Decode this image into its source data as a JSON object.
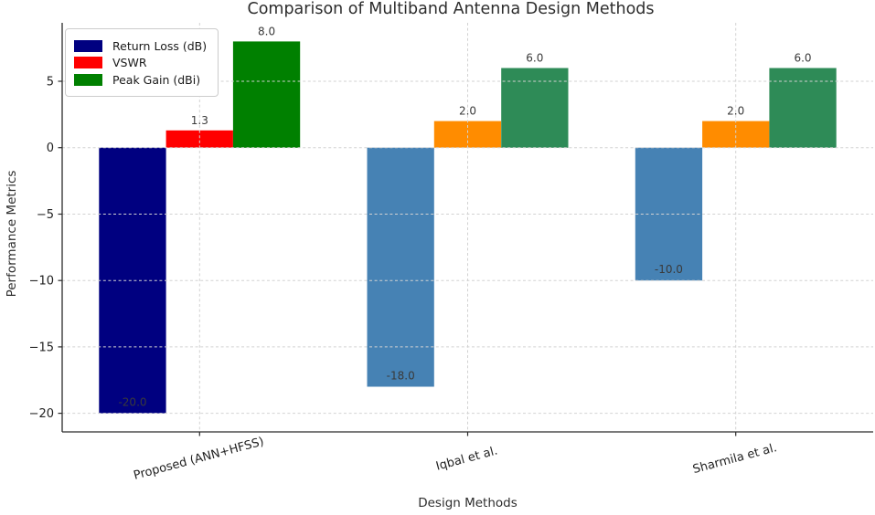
{
  "chart_data": {
    "type": "bar",
    "title": "Comparison of Multiband Antenna Design Methods",
    "xlabel": "Design Methods",
    "ylabel": "Performance Metrics",
    "categories": [
      "Proposed (ANN+HFSS)",
      "Iqbal et al.",
      "Sharmila et al."
    ],
    "series": [
      {
        "name": "Return Loss (dB)",
        "values": [
          -20.0,
          -18.0,
          -10.0
        ],
        "value_labels": [
          "-20.0",
          "-18.0",
          "-10.0"
        ],
        "bar_colors": [
          "#000080",
          "#4682B4",
          "#4682B4"
        ]
      },
      {
        "name": "VSWR",
        "values": [
          1.3,
          2.0,
          2.0
        ],
        "value_labels": [
          "1.3",
          "2.0",
          "2.0"
        ],
        "bar_colors": [
          "#FF0000",
          "#FF8C00",
          "#FF8C00"
        ]
      },
      {
        "name": "Peak Gain (dBi)",
        "values": [
          8.0,
          6.0,
          6.0
        ],
        "value_labels": [
          "8.0",
          "6.0",
          "6.0"
        ],
        "bar_colors": [
          "#008000",
          "#2E8B57",
          "#2E8B57"
        ]
      }
    ],
    "legend": {
      "position": "upper left",
      "entries": [
        {
          "label": "Return Loss (dB)",
          "color": "#000080"
        },
        {
          "label": "VSWR",
          "color": "#FF0000"
        },
        {
          "label": "Peak Gain (dBi)",
          "color": "#008000"
        }
      ]
    },
    "y_ticks": {
      "values": [
        5,
        0,
        -5,
        -10,
        -15,
        -20
      ],
      "labels": [
        "5",
        "0",
        "−5",
        "−10",
        "−15",
        "−20"
      ]
    },
    "ylim": [
      -21.4,
      9.4
    ],
    "xlim": [
      -0.5125,
      2.5125
    ],
    "bar_width": 0.25,
    "grid": {
      "visible": true,
      "style": "dashed",
      "color": "#d2d2d2"
    },
    "spine_color": "#2b2b2b",
    "tick_label_color": "#222222",
    "value_label_color": "#3a3a3a"
  }
}
